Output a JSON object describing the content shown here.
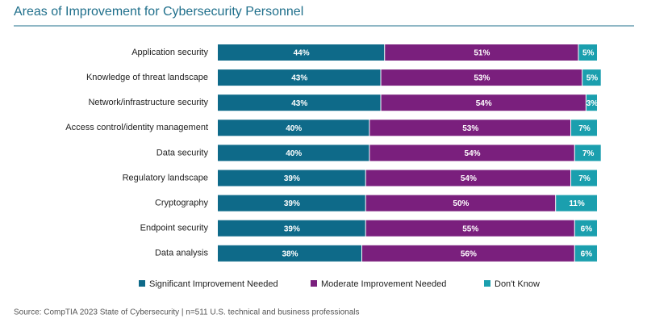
{
  "chart_data": {
    "type": "stacked_bar",
    "orientation": "horizontal",
    "title": "Areas of Improvement for Cybersecurity Personnel",
    "source": "Source: CompTIA 2023 State of Cybersecurity | n=511 U.S. technical and business professionals",
    "categories": [
      "Application security",
      "Knowledge of threat landscape",
      "Network/infrastructure security",
      "Access control/identity management",
      "Data security",
      "Regulatory landscape",
      "Cryptography",
      "Endpoint security",
      "Data analysis"
    ],
    "xlim": [
      0,
      100
    ],
    "legend": "bottom",
    "series": [
      {
        "name": "Significant Improvement Needed",
        "color": "#0e6a89",
        "values": [
          44,
          43,
          43,
          40,
          40,
          39,
          39,
          39,
          38
        ],
        "value_labels": [
          "44%",
          "43%",
          "43%",
          "40%",
          "40%",
          "39%",
          "39%",
          "39%",
          "38%"
        ]
      },
      {
        "name": "Moderate Improvement Needed",
        "color": "#7a1f7d",
        "values": [
          51,
          53,
          54,
          53,
          54,
          54,
          50,
          55,
          56
        ],
        "value_labels": [
          "51%",
          "53%",
          "54%",
          "53%",
          "54%",
          "54%",
          "50%",
          "55%",
          "56%"
        ]
      },
      {
        "name": "Don't Know",
        "color": "#1b9fae",
        "values": [
          5,
          5,
          3,
          7,
          7,
          7,
          11,
          6,
          6
        ],
        "value_labels": [
          "5%",
          "5%",
          "3%",
          "7%",
          "7%",
          "7%",
          "11%",
          "6%",
          "6%"
        ]
      }
    ]
  }
}
